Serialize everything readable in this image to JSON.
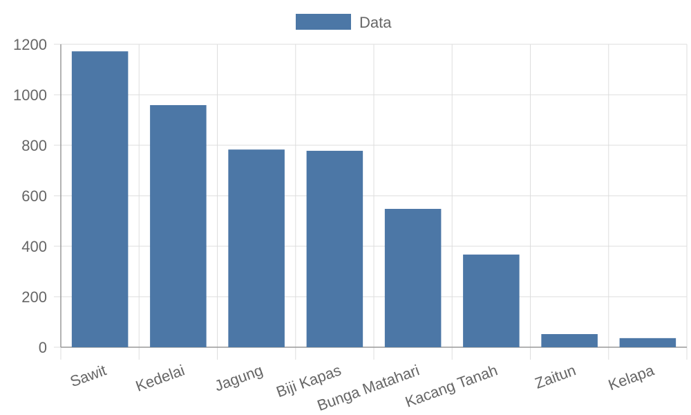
{
  "chart_data": {
    "type": "bar",
    "categories": [
      "Sawit",
      "Kedelai",
      "Jagung",
      "Biji Kapas",
      "Bunga Matahari",
      "Kacang Tanah",
      "Zaitun",
      "Kelapa"
    ],
    "series": [
      {
        "name": "Data",
        "color": "#4c77a6",
        "values": [
          1172,
          959,
          783,
          778,
          548,
          367,
          52,
          36
        ]
      }
    ],
    "ylim": [
      0,
      1200
    ],
    "yticks": [
      0,
      200,
      400,
      600,
      800,
      1000,
      1200
    ],
    "grid": true,
    "legend": "top"
  }
}
